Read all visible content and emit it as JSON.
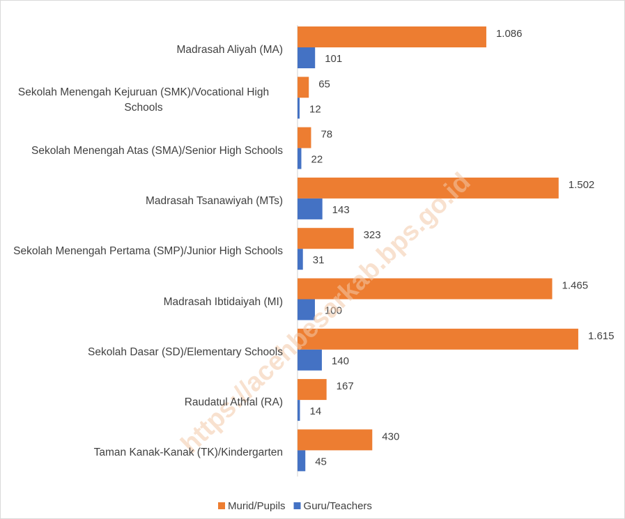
{
  "chart_data": {
    "type": "bar",
    "orientation": "horizontal",
    "categories": [
      "Madrasah Aliyah (MA)",
      "Sekolah Menengah Kejuruan (SMK)/Vocational High Schools",
      "Sekolah Menengah Atas (SMA)/Senior High Schools",
      "Madrasah Tsanawiyah (MTs)",
      "Sekolah Menengah Pertama (SMP)/Junior High Schools",
      "Madrasah Ibtidaiyah (MI)",
      "Sekolah Dasar (SD)/Elementary Schools",
      "Raudatul Athfal (RA)",
      "Taman Kanak-Kanak (TK)/Kindergarten"
    ],
    "series": [
      {
        "name": "Murid/Pupils",
        "color": "#ed7d31",
        "values": [
          1086,
          65,
          78,
          1502,
          323,
          1465,
          1615,
          167,
          430
        ],
        "value_labels": [
          "1.086",
          "65",
          "78",
          "1.502",
          "323",
          "1.465",
          "1.615",
          "167",
          "430"
        ]
      },
      {
        "name": "Guru/Teachers",
        "color": "#4472c4",
        "values": [
          101,
          12,
          22,
          143,
          31,
          100,
          140,
          14,
          45
        ],
        "value_labels": [
          "101",
          "12",
          "22",
          "143",
          "31",
          "100",
          "140",
          "14",
          "45"
        ]
      }
    ],
    "legend": "bottom",
    "watermark": "https://acehbesarkab.bps.go.id"
  }
}
